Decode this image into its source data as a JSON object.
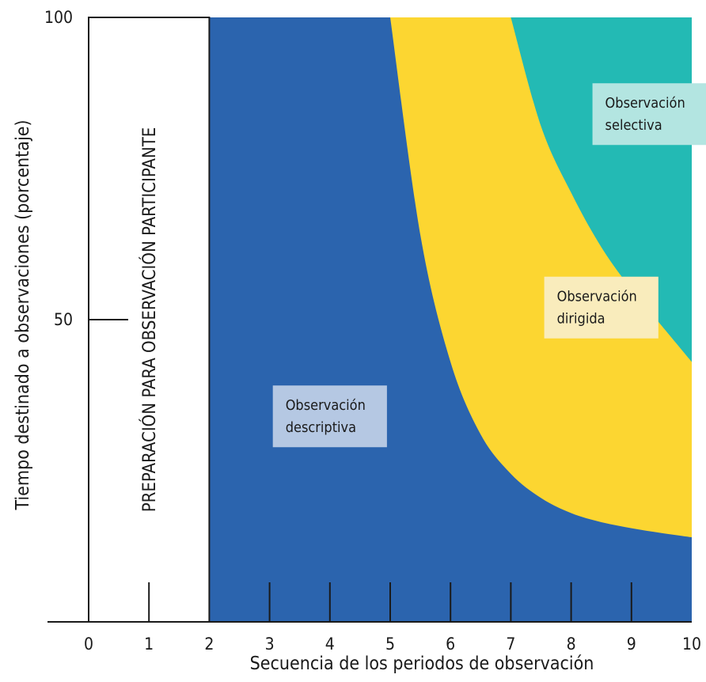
{
  "chart_data": {
    "type": "area",
    "xlabel": "Secuencia de los periodos de observación",
    "ylabel": "Tiempo destinado a observaciones (porcentaje)",
    "xlim": [
      0,
      10
    ],
    "ylim": [
      0,
      100
    ],
    "x_ticks": [
      0,
      1,
      2,
      3,
      4,
      5,
      6,
      7,
      8,
      9,
      10
    ],
    "y_tick_labels": [
      "100",
      "50"
    ],
    "y_ticks": [
      100,
      50
    ],
    "grid": false,
    "preparation_band": {
      "x_range": [
        0,
        2
      ],
      "label": "PREPARACIÓN PARA OBSERVACIÓN PARTICIPANTE"
    },
    "regions": [
      {
        "label": "Observación descriptiva",
        "color": "#2b64ae",
        "box_color": "#b5c8e3"
      },
      {
        "label": "Observación dirigida",
        "color": "#fcd631",
        "box_color": "#f9ecbc",
        "lower_boundary": {
          "x": [
            5.0,
            5.5,
            6.0,
            6.5,
            7.0,
            7.5,
            8.0,
            8.5,
            9.0,
            9.5,
            10.0
          ],
          "y": [
            100.0,
            64.0,
            43.0,
            31.0,
            24.5,
            20.5,
            18.0,
            16.5,
            15.5,
            14.7,
            14.0
          ]
        }
      },
      {
        "label": "Observación selectiva",
        "color": "#23bab4",
        "box_color": "#b3e5e1",
        "lower_boundary": {
          "x": [
            7.0,
            7.5,
            8.0,
            8.5,
            9.0,
            9.5,
            10.0
          ],
          "y": [
            100.0,
            82.0,
            71.0,
            62.0,
            55.0,
            49.0,
            43.0
          ]
        }
      }
    ]
  }
}
